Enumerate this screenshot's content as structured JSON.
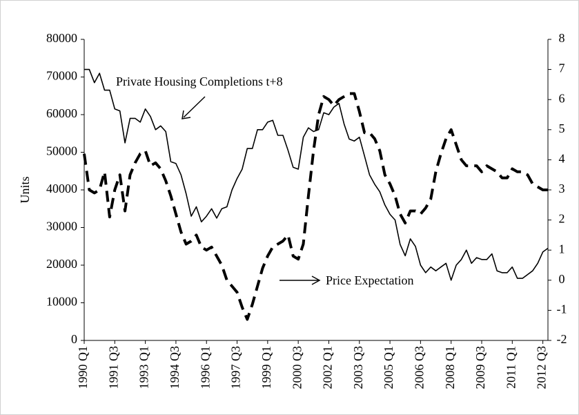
{
  "chart_data": {
    "type": "line",
    "ylabel": "Units",
    "annotations": [
      "Private Housing Completions t+8",
      "Price Expectation"
    ],
    "categories": [
      "1990 Q1",
      null,
      null,
      null,
      null,
      null,
      "1991 Q3",
      null,
      null,
      null,
      null,
      null,
      "1993 Q1",
      null,
      null,
      null,
      null,
      null,
      "1994 Q3",
      null,
      null,
      null,
      null,
      null,
      "1996 Q1",
      null,
      null,
      null,
      null,
      null,
      "1997 Q3",
      null,
      null,
      null,
      null,
      null,
      "1999 Q1",
      null,
      null,
      null,
      null,
      null,
      "2000 Q3",
      null,
      null,
      null,
      null,
      null,
      "2002 Q1",
      null,
      null,
      null,
      null,
      null,
      "2003 Q3",
      null,
      null,
      null,
      null,
      null,
      "2005 Q1",
      null,
      null,
      null,
      null,
      null,
      "2006 Q3",
      null,
      null,
      null,
      null,
      null,
      "2008 Q1",
      null,
      null,
      null,
      null,
      null,
      "2009 Q3",
      null,
      null,
      null,
      null,
      null,
      "2011 Q1",
      null,
      null,
      null,
      null,
      null,
      "2012 Q3",
      null
    ],
    "series": [
      {
        "color": "#000000",
        "values": [
          72000,
          72000,
          68500,
          71000,
          66500,
          66500,
          61500,
          61000,
          52500,
          59000,
          59000,
          58000,
          61500,
          59500,
          56000,
          57000,
          55500,
          47500,
          47000,
          44000,
          39000,
          33000,
          35500,
          31500,
          33000,
          35000,
          32500,
          35000,
          35500,
          40000,
          43000,
          45500,
          51000,
          51000,
          56000,
          56000,
          58000,
          58500,
          54500,
          54500,
          50500,
          46000,
          45500,
          54000,
          56500,
          55500,
          56000,
          60500,
          60000,
          62000,
          63000,
          57500,
          53500,
          53000,
          54000,
          49000,
          44000,
          41500,
          39500,
          36000,
          33500,
          32000,
          25500,
          22500,
          27000,
          25000,
          20000,
          18000,
          19500,
          18500,
          19500,
          20500,
          16000,
          20000,
          21500,
          24000,
          20500,
          22000,
          21500,
          21500,
          23000,
          18500,
          18000,
          18000,
          19500,
          16500,
          16500,
          17500,
          18500,
          20500,
          23500,
          24500
        ]
      },
      {
        "color": "#000000",
        "axis": "y2",
        "dashed": true,
        "values": [
          4.2,
          3.0,
          2.9,
          3.0,
          3.6,
          2.1,
          3.0,
          3.5,
          2.3,
          3.5,
          3.9,
          4.2,
          4.3,
          3.8,
          3.9,
          3.7,
          3.3,
          2.8,
          2.2,
          1.6,
          1.2,
          1.3,
          1.5,
          1.1,
          1.0,
          1.1,
          0.8,
          0.5,
          0.0,
          -0.2,
          -0.4,
          -0.9,
          -1.3,
          -0.8,
          -0.2,
          0.4,
          0.8,
          1.1,
          1.2,
          1.3,
          1.5,
          0.8,
          0.7,
          1.2,
          2.8,
          4.3,
          5.5,
          6.1,
          6.0,
          5.8,
          6.0,
          6.1,
          6.2,
          6.2,
          5.6,
          4.9,
          4.9,
          4.7,
          4.3,
          3.5,
          3.2,
          2.8,
          2.2,
          1.9,
          2.3,
          2.3,
          2.2,
          2.4,
          2.7,
          3.6,
          4.2,
          4.7,
          5.0,
          4.5,
          4.0,
          3.8,
          3.8,
          3.8,
          3.6,
          3.8,
          3.7,
          3.6,
          3.4,
          3.4,
          3.7,
          3.6,
          3.6,
          3.5,
          3.2,
          3.1,
          3.0,
          3.0
        ]
      }
    ],
    "ylim": [
      0,
      80000
    ],
    "yticks": [
      0,
      10000,
      20000,
      30000,
      40000,
      50000,
      60000,
      70000,
      80000
    ],
    "y2lim": [
      -2,
      8
    ],
    "y2ticks": [
      -2,
      -1,
      0,
      1,
      2,
      3,
      4,
      5,
      6,
      7,
      8
    ]
  }
}
